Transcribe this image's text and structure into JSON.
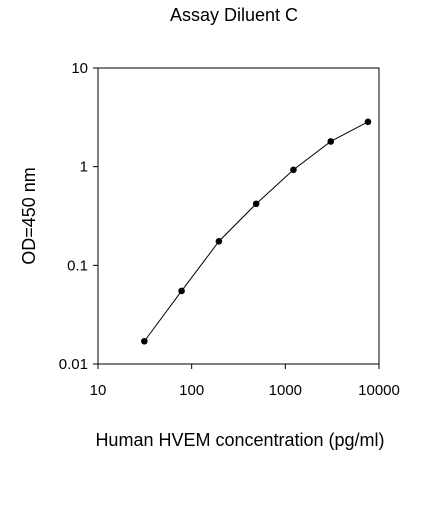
{
  "chart_data": {
    "type": "line",
    "title": "Assay Diluent C",
    "xlabel": "Human HVEM concentration (pg/ml)",
    "ylabel": "OD=450 nm",
    "x_scale": "log",
    "y_scale": "log",
    "xlim": [
      10,
      10000
    ],
    "ylim": [
      0.01,
      10
    ],
    "x_ticks": [
      {
        "value": 10,
        "label": "10"
      },
      {
        "value": 100,
        "label": "100"
      },
      {
        "value": 1000,
        "label": "1000"
      },
      {
        "value": 10000,
        "label": "10000"
      }
    ],
    "y_ticks": [
      {
        "value": 10,
        "label": "10"
      },
      {
        "value": 1,
        "label": "1"
      },
      {
        "value": 0.1,
        "label": "0.1"
      },
      {
        "value": 0.01,
        "label": "0.01"
      }
    ],
    "grid": false,
    "legend": "none",
    "series": [
      {
        "x": [
          31.25,
          78.1,
          195.3,
          488.3,
          1221,
          3052,
          7630
        ],
        "y": [
          0.017,
          0.055,
          0.175,
          0.42,
          0.93,
          1.8,
          2.85
        ],
        "color": "#000000",
        "marker": "circle"
      }
    ]
  }
}
